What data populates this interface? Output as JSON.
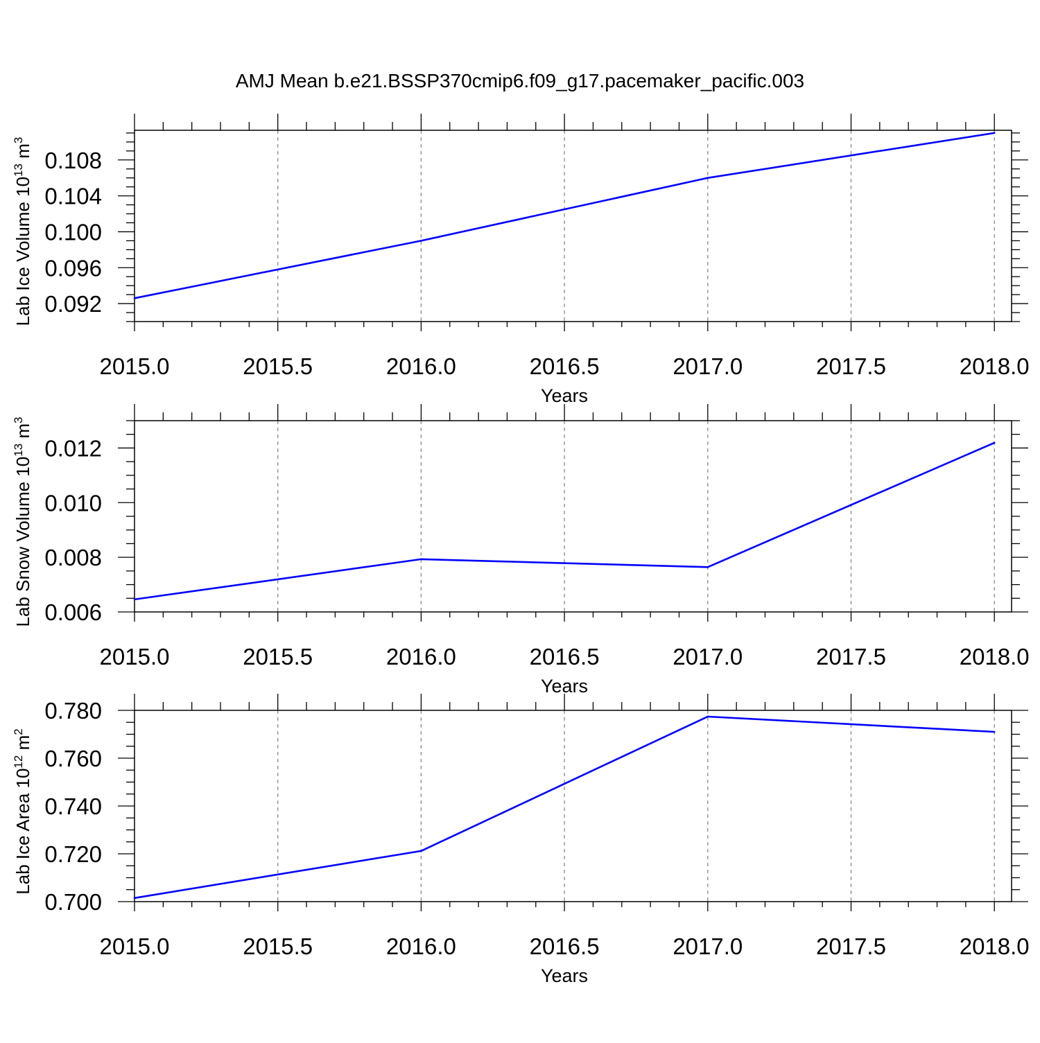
{
  "title": "AMJ Mean b.e21.BSSP370cmip6.f09_g17.pacemaker_pacific.003",
  "colors": {
    "line": "#0000ff",
    "axes": "#000000",
    "grid": "#888888"
  },
  "chart_data": [
    {
      "type": "line",
      "ylabel": "Lab Ice Volume 10^13 m^3",
      "ylabel_parts": {
        "main": "Lab Ice Volume 10",
        "exp1": "13",
        "unit": " m",
        "exp2": "3"
      },
      "xlabel": "Years",
      "x": [
        2015,
        2016,
        2017,
        2018
      ],
      "series": [
        {
          "values": [
            0.0926,
            0.099,
            0.106,
            0.111
          ]
        }
      ],
      "xlim": [
        2015,
        2018.06
      ],
      "ylim": [
        0.09,
        0.1113
      ],
      "xticks": [
        2015.0,
        2015.5,
        2016.0,
        2016.5,
        2017.0,
        2017.5,
        2018.0
      ],
      "xtick_labels": [
        "2015.0",
        "2015.5",
        "2016.0",
        "2016.5",
        "2017.0",
        "2017.5",
        "2018.0"
      ],
      "yticks": [
        0.092,
        0.096,
        0.1,
        0.104,
        0.108
      ],
      "ytick_labels": [
        "0.092",
        "0.096",
        "0.100",
        "0.104",
        "0.108"
      ],
      "yminor_step": 0.001,
      "grid": "x-dashed"
    },
    {
      "type": "line",
      "ylabel": "Lab Snow Volume 10^13 m^3",
      "ylabel_parts": {
        "main": "Lab Snow Volume 10",
        "exp1": "13",
        "unit": " m",
        "exp2": "3"
      },
      "xlabel": "Years",
      "x": [
        2015,
        2016,
        2017,
        2018
      ],
      "series": [
        {
          "values": [
            0.00646,
            0.00793,
            0.00764,
            0.01219
          ]
        }
      ],
      "xlim": [
        2015,
        2018.06
      ],
      "ylim": [
        0.006,
        0.013
      ],
      "xticks": [
        2015.0,
        2015.5,
        2016.0,
        2016.5,
        2017.0,
        2017.5,
        2018.0
      ],
      "xtick_labels": [
        "2015.0",
        "2015.5",
        "2016.0",
        "2016.5",
        "2017.0",
        "2017.5",
        "2018.0"
      ],
      "yticks": [
        0.006,
        0.008,
        0.01,
        0.012
      ],
      "ytick_labels": [
        "0.006",
        "0.008",
        "0.010",
        "0.012"
      ],
      "yminor_step": 0.0005,
      "grid": "x-dashed"
    },
    {
      "type": "line",
      "ylabel": "Lab Ice Area 10^12 m^2",
      "ylabel_parts": {
        "main": "Lab Ice Area 10",
        "exp1": "12",
        "unit": " m",
        "exp2": "2"
      },
      "xlabel": "Years",
      "x": [
        2015,
        2016,
        2017,
        2018
      ],
      "series": [
        {
          "values": [
            0.7015,
            0.7212,
            0.7774,
            0.771
          ]
        }
      ],
      "xlim": [
        2015,
        2018.06
      ],
      "ylim": [
        0.7,
        0.78
      ],
      "xticks": [
        2015.0,
        2015.5,
        2016.0,
        2016.5,
        2017.0,
        2017.5,
        2018.0
      ],
      "xtick_labels": [
        "2015.0",
        "2015.5",
        "2016.0",
        "2016.5",
        "2017.0",
        "2017.5",
        "2018.0"
      ],
      "yticks": [
        0.7,
        0.72,
        0.74,
        0.76,
        0.78
      ],
      "ytick_labels": [
        "0.700",
        "0.720",
        "0.740",
        "0.760",
        "0.780"
      ],
      "yminor_step": 0.005,
      "grid": "x-dashed"
    }
  ]
}
